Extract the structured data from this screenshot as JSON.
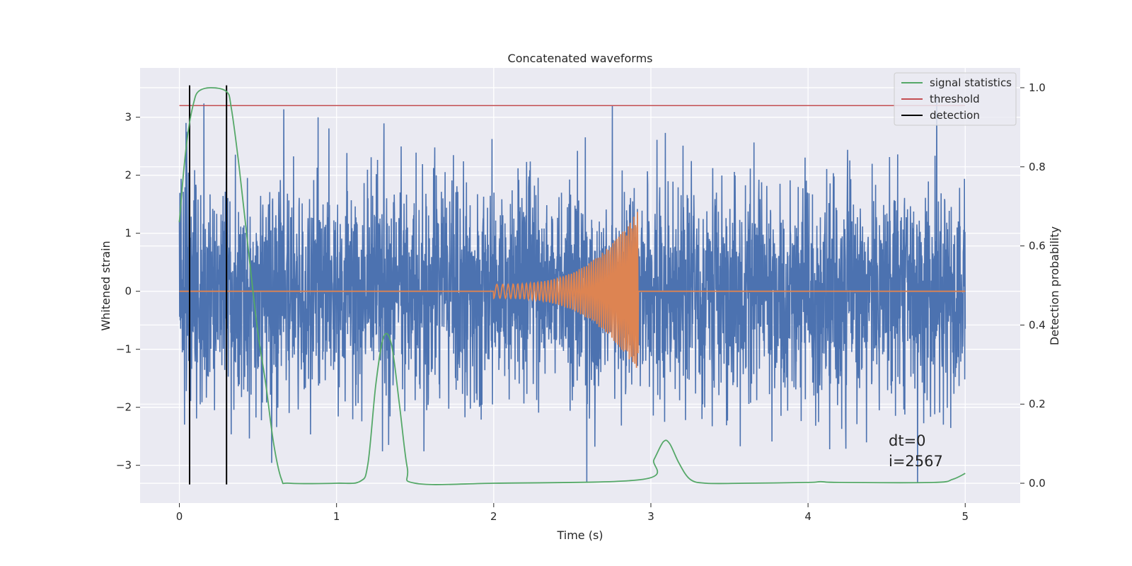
{
  "chart_data": {
    "type": "line",
    "title": "Concatenated waveforms",
    "xlabel": "Time (s)",
    "ylabel": "Whitened strain",
    "ylabel_right": "Detection probability",
    "xlim": [
      -0.25,
      5.35
    ],
    "ylim": [
      -3.65,
      3.85
    ],
    "ylim_right": [
      -0.05,
      1.05
    ],
    "xticks": [
      "0",
      "1",
      "2",
      "3",
      "4",
      "5"
    ],
    "yticks": [
      "3",
      "2",
      "1",
      "0",
      "−1",
      "−2",
      "−3"
    ],
    "yticks_right": [
      "1.0",
      "0.8",
      "0.6",
      "0.4",
      "0.2",
      "0.0"
    ],
    "grid": true,
    "background": "#eaeaf2",
    "legend_position": "top-right",
    "legend": [
      {
        "label": "signal statistics",
        "color": "#55a868"
      },
      {
        "label": "threshold",
        "color": "#c44e52"
      },
      {
        "label": "detection",
        "color": "#000000"
      }
    ],
    "series": [
      {
        "name": "whitened strain (noise)",
        "axis": "left",
        "color": "#4c72b0",
        "x_range": [
          0,
          5
        ],
        "amplitude_envelope": 3.5,
        "note_values": "dense noise, peaks near 3.5 and troughs near -3.3"
      },
      {
        "name": "injected waveform",
        "axis": "left",
        "color": "#dd8452",
        "x_range": [
          0,
          5
        ],
        "chirp_start": 2.0,
        "chirp_end": 2.92,
        "chirp_amplitude_start": 0.12,
        "chirp_amplitude_end": 1.4
      },
      {
        "name": "signal statistics",
        "axis": "right",
        "color": "#55a868",
        "x": [
          0.0,
          0.03,
          0.06,
          0.09,
          0.12,
          0.2,
          0.3,
          0.33,
          0.38,
          0.45,
          0.5,
          0.55,
          0.6,
          0.65,
          0.7,
          1.0,
          1.15,
          1.2,
          1.25,
          1.3,
          1.35,
          1.4,
          1.45,
          1.5,
          2.0,
          2.95,
          3.02,
          3.08,
          3.12,
          3.18,
          3.25,
          3.35,
          3.6,
          4.0,
          4.08,
          4.2,
          4.8,
          4.92,
          5.0
        ],
        "y": [
          0.66,
          0.8,
          0.9,
          0.96,
          0.99,
          1.0,
          0.99,
          0.95,
          0.8,
          0.55,
          0.38,
          0.25,
          0.1,
          0.01,
          0.0,
          0.0,
          0.005,
          0.05,
          0.25,
          0.37,
          0.35,
          0.2,
          0.04,
          0.0,
          0.0,
          0.01,
          0.06,
          0.105,
          0.1,
          0.05,
          0.01,
          0.0,
          0.0,
          0.002,
          0.004,
          0.002,
          0.002,
          0.01,
          0.025
        ]
      },
      {
        "name": "threshold",
        "axis": "left",
        "color": "#c44e52",
        "x": [
          0,
          5
        ],
        "y": [
          3.2,
          3.2
        ]
      },
      {
        "name": "detection",
        "axis": "left",
        "color": "#000000",
        "x_positions": [
          0.065,
          0.3
        ],
        "y_range": [
          -3.33,
          3.55
        ]
      }
    ],
    "annotations": [
      "dt=0",
      "i=2567"
    ]
  }
}
